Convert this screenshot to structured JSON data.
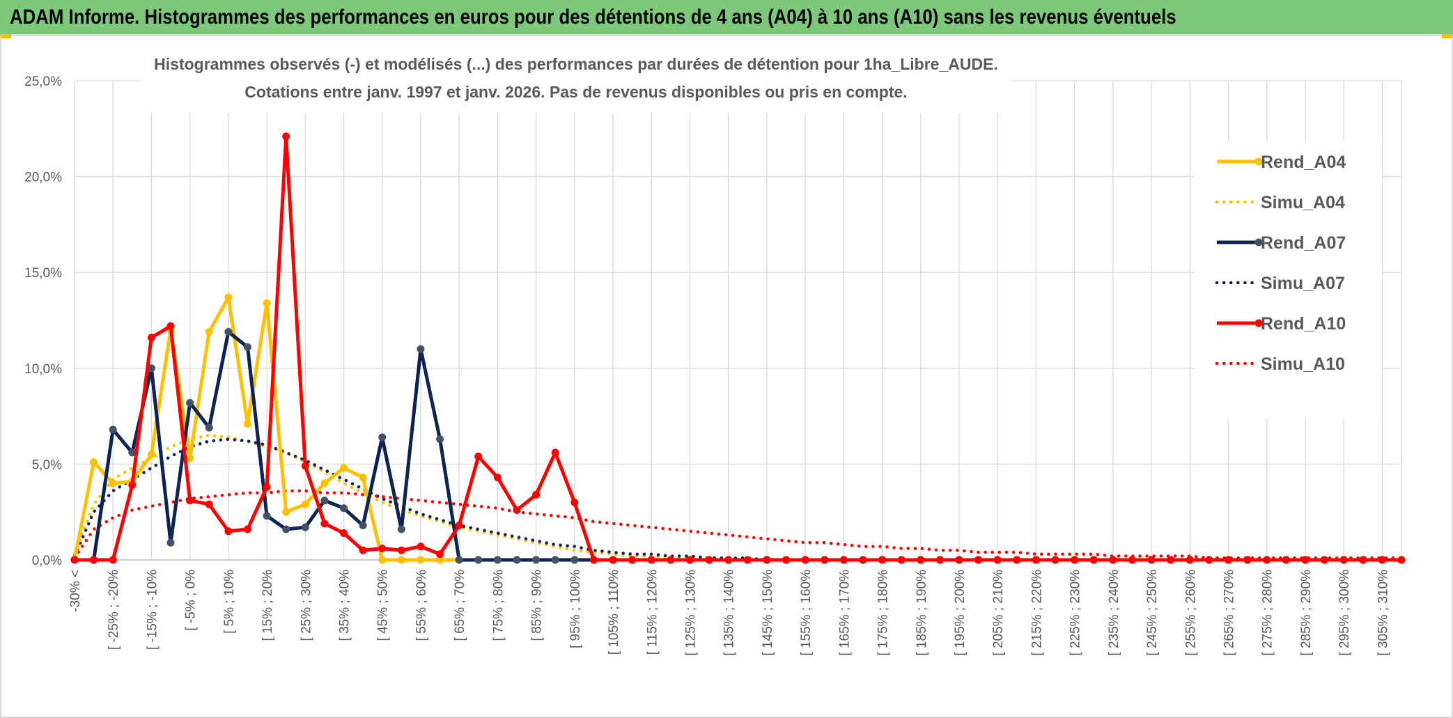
{
  "header": {
    "title": "ADAM Informe. Histogrammes des performances en euros pour des détentions de 4 ans (A04) à 10 ans (A10) sans les revenus éventuels",
    "bar_color": "#7ec87c",
    "corner_color": "#f2c200"
  },
  "chart_data": {
    "type": "line",
    "title_lines": [
      "Histogrammes observés (-) et modélisés (...) des performances par durées de détention pour 1ha_Libre_AUDE.",
      "Cotations entre janv. 1997 et janv. 2026. Pas de revenus disponibles ou pris en compte."
    ],
    "xlabel": "",
    "ylabel": "",
    "ylim": [
      0,
      25
    ],
    "y_ticks": [
      "0,0%",
      "5,0%",
      "10,0%",
      "15,0%",
      "20,0%",
      "25,0%"
    ],
    "grid": true,
    "legend_position": "right",
    "categories": [
      "-30% <",
      "[ -30% ; -25% [",
      "[ -25% ; -20% [",
      "[ -20% ; -15% [",
      "[ -15% ; -10% [",
      "[ -10% ; -5% [",
      "[ -5% ; 0% [",
      "[ 0% ; 5% [",
      "[ 5% ; 10% [",
      "[ 10% ; 15% [",
      "[ 15% ; 20% [",
      "[ 20% ; 25% [",
      "[ 25% ; 30% [",
      "[ 30% ; 35% [",
      "[ 35% ; 40% [",
      "[ 40% ; 45% [",
      "[ 45% ; 50% [",
      "[ 50% ; 55% [",
      "[ 55% ; 60% [",
      "[ 60% ; 65% [",
      "[ 65% ; 70% [",
      "[ 70% ; 75% [",
      "[ 75% ; 80% [",
      "[ 80% ; 85% [",
      "[ 85% ; 90% [",
      "[ 90% ; 95% [",
      "[ 95% ; 100% [",
      "[ 100% ; 105% [",
      "[ 105% ; 110% [",
      "[ 110% ; 115% [",
      "[ 115% ; 120% [",
      "[ 120% ; 125% [",
      "[ 125% ; 130% [",
      "[ 130% ; 135% [",
      "[ 135% ; 140% [",
      "[ 140% ; 145% [",
      "[ 145% ; 150% [",
      "[ 150% ; 155% [",
      "[ 155% ; 160% [",
      "[ 160% ; 165% [",
      "[ 165% ; 170% [",
      "[ 170% ; 175% [",
      "[ 175% ; 180% [",
      "[ 180% ; 185% [",
      "[ 185% ; 190% [",
      "[ 190% ; 195% [",
      "[ 195% ; 200% [",
      "[ 200% ; 205% [",
      "[ 205% ; 210% [",
      "[ 210% ; 215% [",
      "[ 215% ; 220% [",
      "[ 220% ; 225% [",
      "[ 225% ; 230% [",
      "[ 230% ; 235% [",
      "[ 235% ; 240% [",
      "[ 240% ; 245% [",
      "[ 245% ; 250% [",
      "[ 250% ; 255% [",
      "[ 255% ; 260% [",
      "[ 260% ; 265% [",
      "[ 265% ; 270% [",
      "[ 270% ; 275% [",
      "[ 275% ; 280% [",
      "[ 280% ; 285% [",
      "[ 285% ; 290% [",
      "[ 290% ; 295% [",
      "[ 295% ; 300% [",
      "[ 300% ; 305% [",
      "[ 305% ; 310% [",
      "[ 310% ; 315% ["
    ],
    "visible_tick_labels": [
      "-30% <",
      "[ -25% ; -20%",
      "[ -15% ; -10%",
      "[ -5% ; 0%",
      "[ 5% ; 10%",
      "[ 15% ; 20%",
      "[ 25% ; 30%",
      "[ 35% ; 40%",
      "[ 45% ; 50%",
      "[ 55% ; 60%",
      "[ 65% ; 70%",
      "[ 75% ; 80%",
      "[ 85% ; 90%",
      "[ 95% ; 100%",
      "[ 105% ; 110%",
      "[ 115% ; 120%",
      "[ 125% ; 130%",
      "[ 135% ; 140%",
      "[ 145% ; 150%",
      "[ 155% ; 160%",
      "[ 165% ; 170%",
      "[ 175% ; 180%",
      "[ 185% ; 190%",
      "[ 195% ; 200%",
      "[ 205% ; 210%",
      "[ 215% ; 220%",
      "[ 225% ; 230%",
      "[ 235% ; 240%",
      "[ 245% ; 250%",
      "[ 255% ; 260%",
      "[ 265% ; 270%",
      "[ 275% ; 280%",
      "[ 285% ; 290%",
      "[ 295% ; 300%",
      "[ 305% ; 310%"
    ],
    "series": [
      {
        "name": "Rend_A04",
        "style": "solid",
        "color": "#ffc000",
        "values": [
          0,
          5.1,
          4.0,
          4.1,
          5.5,
          12.0,
          5.3,
          11.9,
          13.7,
          7.1,
          13.4,
          2.5,
          2.9,
          4.0,
          4.8,
          4.3,
          0,
          0,
          0,
          0,
          0,
          0,
          0,
          0,
          0,
          0,
          0,
          0,
          0,
          0,
          0,
          0,
          0,
          0,
          0,
          0,
          0,
          0,
          0,
          0,
          0,
          0,
          0,
          0,
          0,
          0,
          0,
          0,
          0,
          0,
          0,
          0,
          0,
          0,
          0,
          0,
          0,
          0,
          0,
          0,
          0,
          0,
          0,
          0,
          0,
          0,
          0,
          0,
          0,
          0
        ]
      },
      {
        "name": "Simu_A04",
        "style": "dotted",
        "color": "#ffc000",
        "values": [
          0.3,
          2.9,
          4.2,
          4.8,
          5.3,
          5.9,
          6.3,
          6.5,
          6.4,
          6.2,
          5.9,
          5.6,
          5.1,
          4.6,
          4.0,
          3.5,
          3.0,
          2.6,
          2.3,
          2.0,
          1.7,
          1.5,
          1.3,
          1.1,
          0.9,
          0.7,
          0.5,
          0.4,
          0.3,
          0.2,
          0.2,
          0.1,
          0.1,
          0.1,
          0.1,
          0,
          0,
          0,
          0,
          0,
          0,
          0,
          0,
          0,
          0,
          0,
          0,
          0,
          0,
          0,
          0,
          0,
          0,
          0,
          0,
          0,
          0,
          0,
          0,
          0,
          0,
          0,
          0,
          0,
          0,
          0,
          0,
          0,
          0,
          0
        ]
      },
      {
        "name": "Rend_A07",
        "style": "solid",
        "color": "#0d2355",
        "values": [
          0,
          0,
          6.8,
          5.6,
          10.0,
          0.9,
          8.2,
          6.9,
          11.9,
          11.1,
          2.3,
          1.6,
          1.7,
          3.1,
          2.7,
          1.8,
          6.4,
          1.6,
          11.0,
          6.3,
          0,
          0,
          0,
          0,
          0,
          0,
          0,
          0,
          0,
          0,
          0,
          0,
          0,
          0,
          0,
          0,
          0,
          0,
          0,
          0,
          0,
          0,
          0,
          0,
          0,
          0,
          0,
          0,
          0,
          0,
          0,
          0,
          0,
          0,
          0,
          0,
          0,
          0,
          0,
          0,
          0,
          0,
          0,
          0,
          0,
          0,
          0,
          0,
          0,
          0
        ]
      },
      {
        "name": "Simu_A07",
        "style": "dotted",
        "color": "#0d2355",
        "values": [
          0.2,
          2.5,
          3.6,
          4.2,
          4.8,
          5.4,
          5.9,
          6.2,
          6.3,
          6.2,
          6.0,
          5.6,
          5.2,
          4.7,
          4.2,
          3.7,
          3.2,
          2.8,
          2.4,
          2.1,
          1.8,
          1.6,
          1.4,
          1.2,
          1.0,
          0.8,
          0.7,
          0.5,
          0.4,
          0.3,
          0.3,
          0.2,
          0.2,
          0.1,
          0.1,
          0.1,
          0,
          0,
          0,
          0,
          0,
          0,
          0,
          0,
          0,
          0,
          0,
          0,
          0,
          0,
          0,
          0,
          0,
          0,
          0,
          0,
          0,
          0,
          0,
          0,
          0,
          0,
          0,
          0,
          0,
          0,
          0,
          0,
          0,
          0
        ]
      },
      {
        "name": "Rend_A10",
        "style": "solid",
        "color": "#ff0000",
        "values": [
          0,
          0,
          0,
          3.9,
          11.6,
          12.2,
          3.1,
          2.9,
          1.5,
          1.6,
          3.8,
          22.1,
          4.9,
          1.9,
          1.4,
          0.5,
          0.6,
          0.5,
          0.7,
          0.3,
          1.8,
          5.4,
          4.3,
          2.6,
          3.4,
          5.6,
          3.0,
          0,
          0,
          0,
          0,
          0,
          0,
          0,
          0,
          0,
          0,
          0,
          0,
          0,
          0,
          0,
          0,
          0,
          0,
          0,
          0,
          0,
          0,
          0,
          0,
          0,
          0,
          0,
          0,
          0,
          0,
          0,
          0,
          0,
          0,
          0,
          0,
          0,
          0,
          0,
          0,
          0,
          0,
          0
        ]
      },
      {
        "name": "Simu_A10",
        "style": "dotted",
        "color": "#ff0000",
        "values": [
          0.1,
          1.6,
          2.2,
          2.6,
          2.8,
          3.0,
          3.2,
          3.3,
          3.4,
          3.5,
          3.5,
          3.6,
          3.6,
          3.5,
          3.5,
          3.4,
          3.3,
          3.2,
          3.1,
          3.0,
          2.9,
          2.8,
          2.7,
          2.5,
          2.4,
          2.3,
          2.2,
          2.0,
          1.9,
          1.8,
          1.7,
          1.6,
          1.5,
          1.4,
          1.3,
          1.2,
          1.1,
          1.0,
          0.9,
          0.9,
          0.8,
          0.7,
          0.7,
          0.6,
          0.6,
          0.5,
          0.5,
          0.4,
          0.4,
          0.4,
          0.3,
          0.3,
          0.3,
          0.3,
          0.2,
          0.2,
          0.2,
          0.2,
          0.2,
          0.1,
          0.1,
          0.1,
          0.1,
          0.1,
          0.1,
          0.1,
          0.1,
          0.1,
          0.1,
          0.1
        ]
      }
    ]
  }
}
